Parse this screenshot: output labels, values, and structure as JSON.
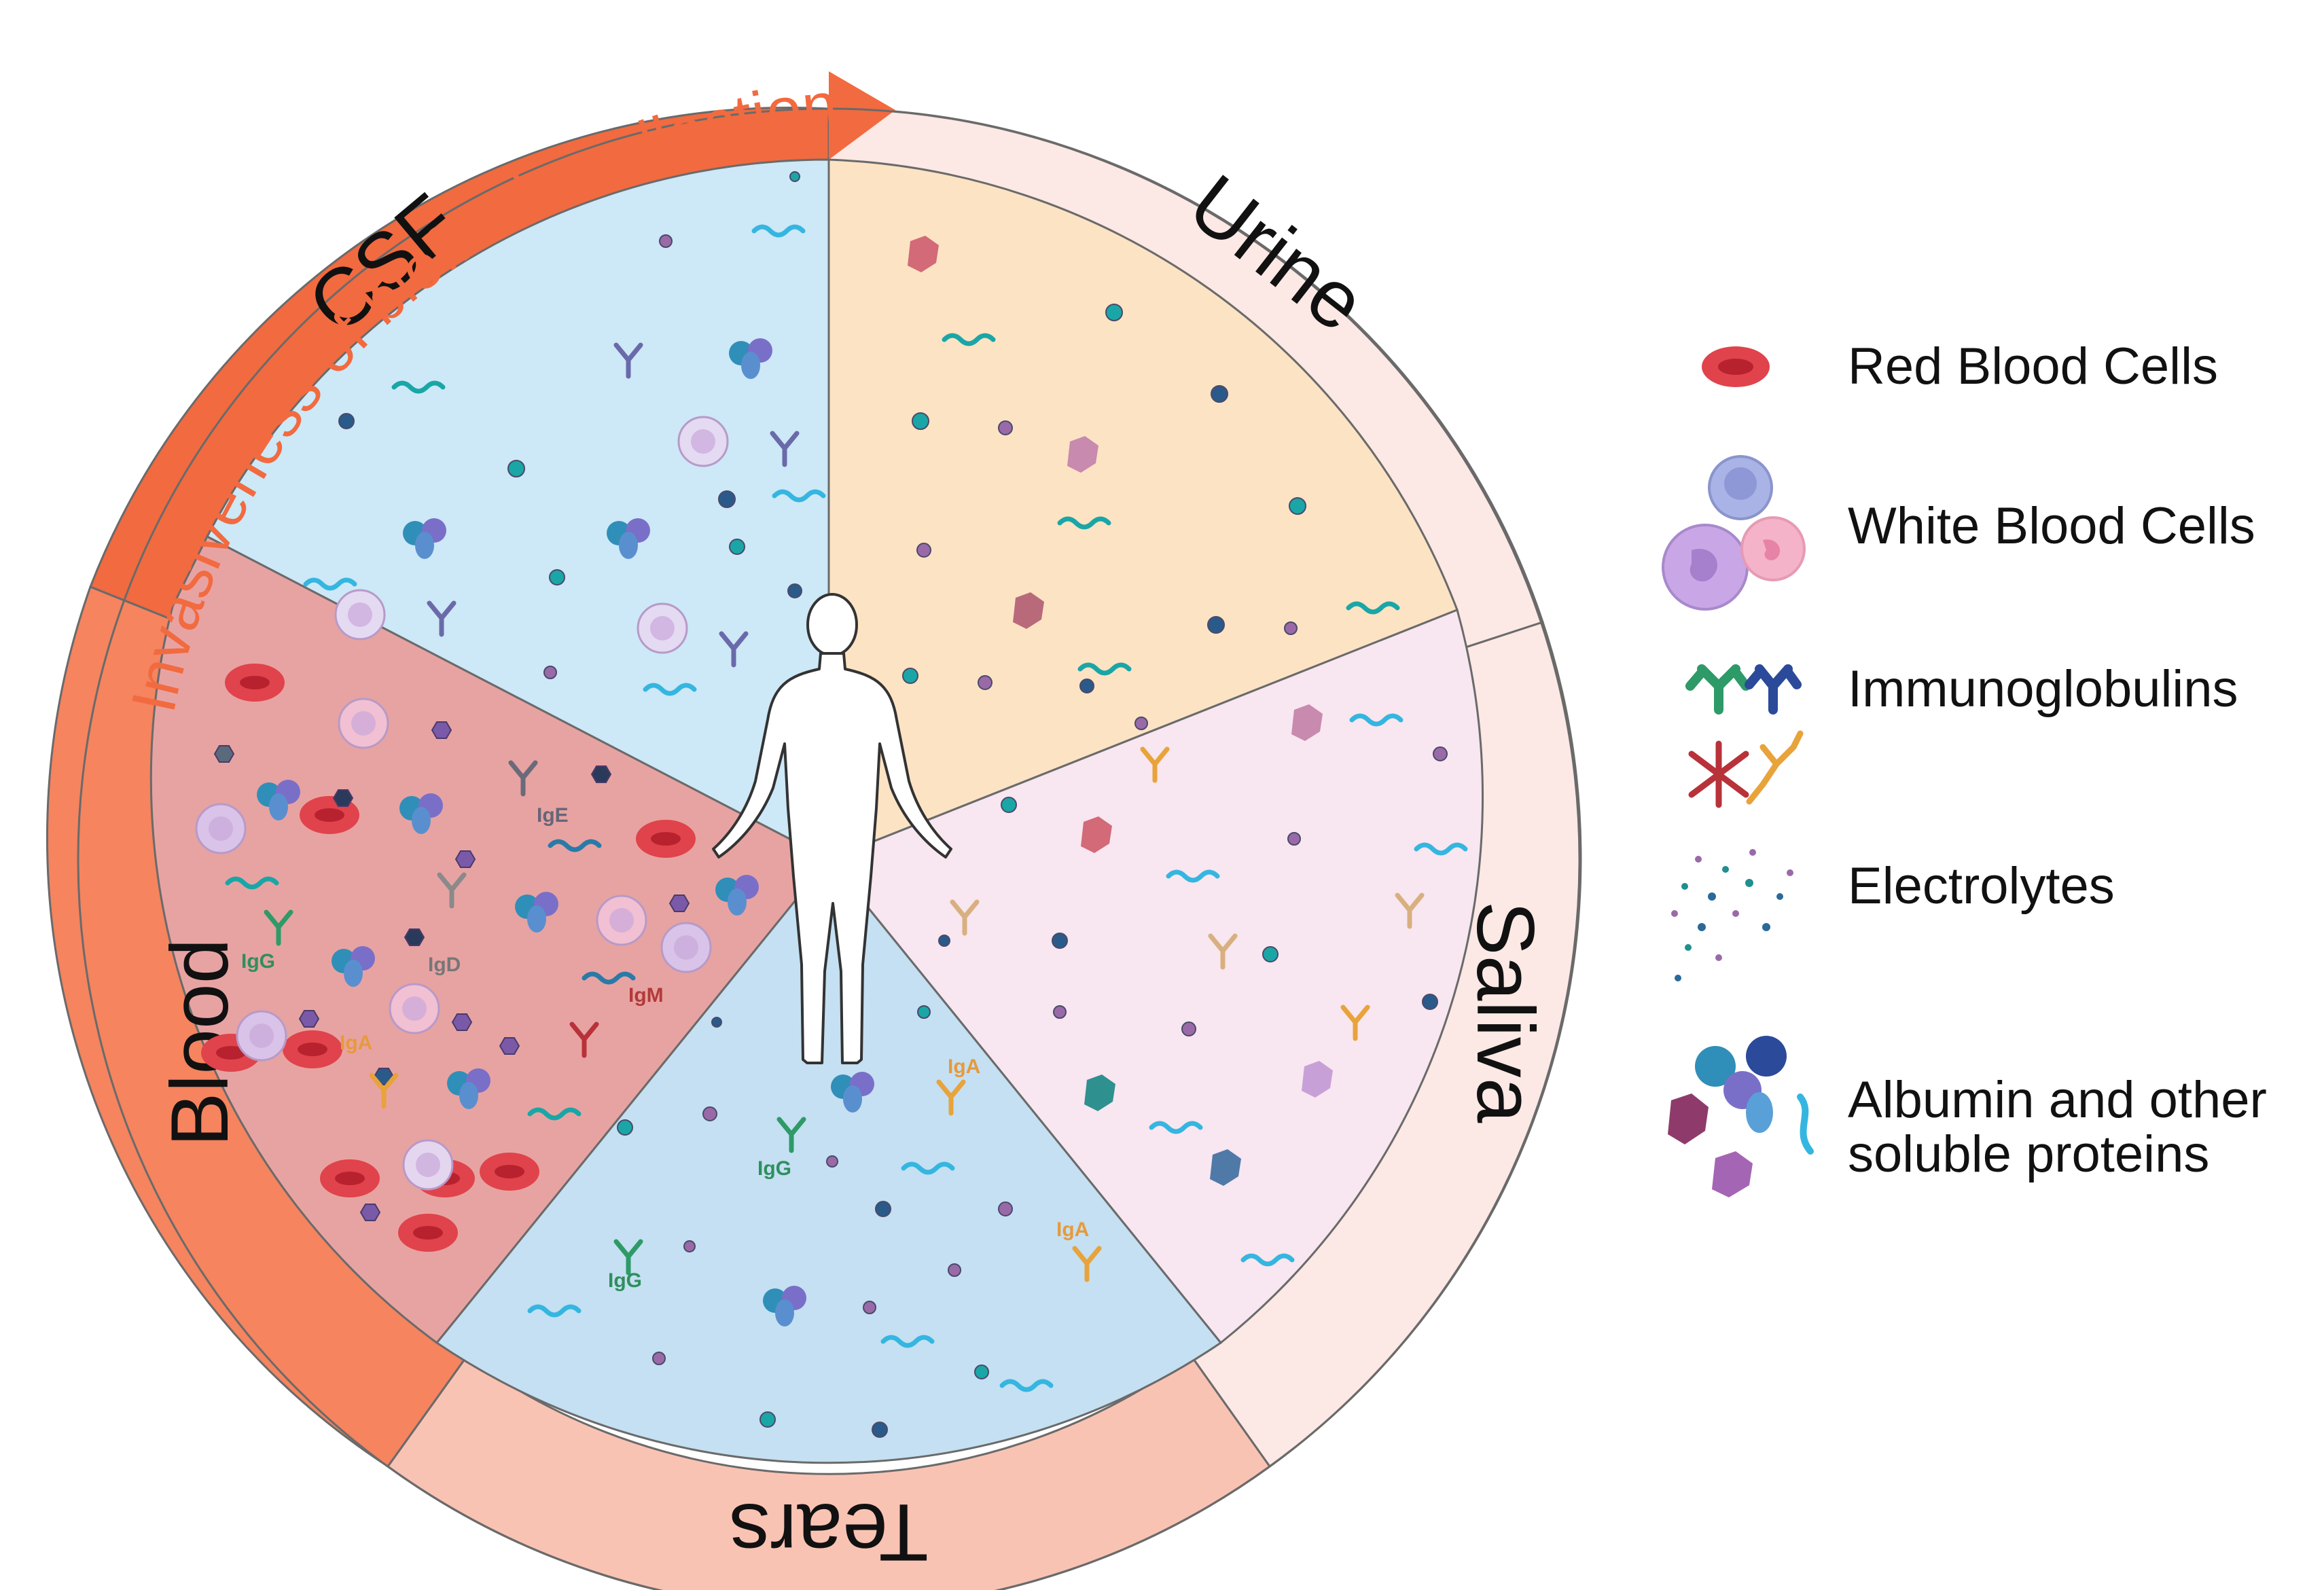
{
  "title": "Invasiveness of biofluids collection",
  "segments": [
    {
      "label": "CSF"
    },
    {
      "label": "Urine"
    },
    {
      "label": "Saliva"
    },
    {
      "label": "Tears"
    },
    {
      "label": "Blood"
    }
  ],
  "immunoglobulin_labels": {
    "ige": "IgE",
    "igg": "IgG",
    "igd": "IgD",
    "iga": "IgA",
    "igm": "IgM"
  },
  "legend": [
    {
      "label": "Red Blood Cells"
    },
    {
      "label": "White Blood Cells"
    },
    {
      "label": "Immunoglobulins"
    },
    {
      "label": "Electrolytes"
    },
    {
      "label": "Albumin and other",
      "label2": "soluble proteins"
    }
  ],
  "colors": {
    "accent": "#F26A3F",
    "csf": "#CDE8F7",
    "urine": "#FCE3C4",
    "saliva": "#F8E6F0",
    "tears": "#C4E0F2",
    "blood": "#E7A3A2",
    "ring_light": "#FCE8E4",
    "ring_tears": "#F9C3B3",
    "ring_blood": "#F5845F"
  }
}
